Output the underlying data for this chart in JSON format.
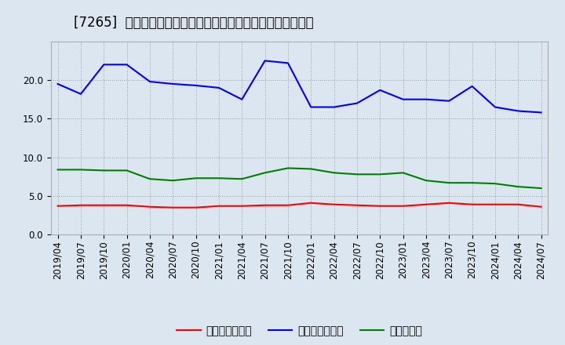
{
  "title": "[7265]  売上債権回転率、買入債務回転率、在庫回転率の推移",
  "x_labels": [
    "2019/04",
    "2019/07",
    "2019/10",
    "2020/01",
    "2020/04",
    "2020/07",
    "2020/10",
    "2021/01",
    "2021/04",
    "2021/07",
    "2021/10",
    "2022/01",
    "2022/04",
    "2022/07",
    "2022/10",
    "2023/01",
    "2023/04",
    "2023/07",
    "2023/10",
    "2024/01",
    "2024/04",
    "2024/07"
  ],
  "accounts_receivable": [
    3.7,
    3.8,
    3.8,
    3.8,
    3.6,
    3.5,
    3.5,
    3.7,
    3.7,
    3.8,
    3.8,
    4.1,
    3.9,
    3.8,
    3.7,
    3.7,
    3.9,
    4.1,
    3.9,
    3.9,
    3.9,
    3.6
  ],
  "accounts_payable": [
    19.5,
    18.2,
    22.0,
    22.0,
    19.8,
    19.5,
    19.3,
    19.0,
    17.5,
    22.5,
    22.2,
    16.5,
    16.5,
    17.0,
    18.7,
    17.5,
    17.5,
    17.3,
    19.2,
    16.5,
    16.0,
    15.8
  ],
  "inventory": [
    8.4,
    8.4,
    8.3,
    8.3,
    7.2,
    7.0,
    7.3,
    7.3,
    7.2,
    8.0,
    8.6,
    8.5,
    8.0,
    7.8,
    7.8,
    8.0,
    7.0,
    6.7,
    6.7,
    6.6,
    6.2,
    6.0
  ],
  "ylim": [
    0,
    25
  ],
  "yticks": [
    0.0,
    5.0,
    10.0,
    15.0,
    20.0
  ],
  "color_ar": "#ff0000",
  "color_ap": "#0000ff",
  "color_inv": "#008000",
  "legend_ar": "売上債権回転率",
  "legend_ap": "買入債務回転率",
  "legend_inv": "在庫回転率",
  "bg_color": "#dce6f1",
  "title_fontsize": 12,
  "tick_fontsize": 8.5,
  "legend_fontsize": 10
}
